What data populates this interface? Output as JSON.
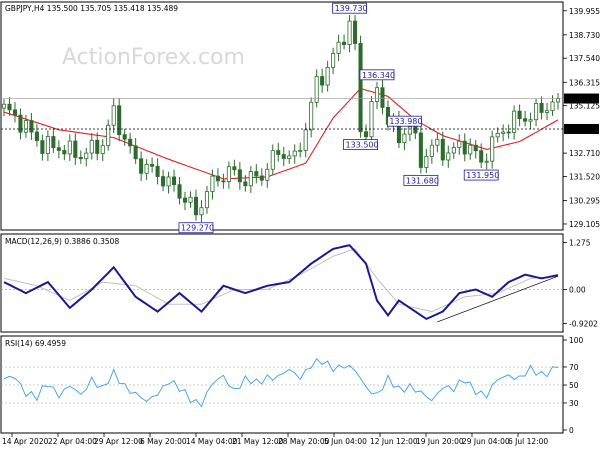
{
  "header": {
    "main_title": "GBPJPY,H4  135.500 135.705 135.418 135.489",
    "macd_title": "MACD(12,26,9) 0.3886 0.3508",
    "rsi_title": "RSI(14) 69.4959",
    "watermark": "ActionForex.com"
  },
  "colors": {
    "candle": "#2f6b2f",
    "ma": "#e02020",
    "macd": "#1a1a8c",
    "signal": "#c0c0c0",
    "rsi": "#3aa0e8",
    "annotation": "#1f1f9a",
    "grid": "#c8c8c8"
  },
  "chart_data": [
    {
      "type": "candlestick",
      "panel": "price",
      "title": "GBPJPY,H4  135.500 135.705 135.418 135.489",
      "x_ticks": [
        "14 Apr 2020",
        "22 Apr 04:00",
        "29 Apr 12:00",
        "6 May 20:00",
        "14 May 04:00",
        "21 May 12:00",
        "28 May 20:00",
        "5 Jun 04:00",
        "12 Jun 12:00",
        "19 Jun 20:00",
        "29 Jun 04:00",
        "6 Jul 12:00"
      ],
      "y_ticks": [
        139.955,
        138.73,
        137.54,
        136.315,
        135.125,
        132.71,
        131.52,
        130.295,
        129.105
      ],
      "ylim": [
        128.9,
        140.3
      ],
      "key_levels": [
        {
          "label": "139.730",
          "index": 63,
          "value": 139.73
        },
        {
          "label": "136.340",
          "index": 68,
          "value": 136.34
        },
        {
          "label": "133.500",
          "index": 65,
          "value": 133.5
        },
        {
          "label": "133.980",
          "index": 73,
          "value": 133.98
        },
        {
          "label": "131.680",
          "index": 76,
          "value": 131.68
        },
        {
          "label": "131.950",
          "index": 87,
          "value": 131.95
        },
        {
          "label": "129.270",
          "index": 35,
          "value": 129.27
        }
      ],
      "current_price": {
        "label": "135.489",
        "value": 135.489
      },
      "hline": {
        "label": "133.940",
        "value": 133.94
      },
      "close_path": [
        {
          "i": 0,
          "v": 135.0
        },
        {
          "i": 3,
          "v": 134.3
        },
        {
          "i": 7,
          "v": 133.1
        },
        {
          "i": 10,
          "v": 133.0
        },
        {
          "i": 14,
          "v": 132.6
        },
        {
          "i": 18,
          "v": 133.2
        },
        {
          "i": 20,
          "v": 134.8
        },
        {
          "i": 22,
          "v": 133.4
        },
        {
          "i": 24,
          "v": 132.3
        },
        {
          "i": 27,
          "v": 131.8
        },
        {
          "i": 30,
          "v": 131.2
        },
        {
          "i": 33,
          "v": 130.4
        },
        {
          "i": 35,
          "v": 129.8
        },
        {
          "i": 38,
          "v": 131.2
        },
        {
          "i": 41,
          "v": 131.8
        },
        {
          "i": 44,
          "v": 131.3
        },
        {
          "i": 47,
          "v": 131.6
        },
        {
          "i": 50,
          "v": 132.8
        },
        {
          "i": 53,
          "v": 132.4
        },
        {
          "i": 55,
          "v": 134.0
        },
        {
          "i": 57,
          "v": 136.3
        },
        {
          "i": 59,
          "v": 137.0
        },
        {
          "i": 61,
          "v": 138.2
        },
        {
          "i": 63,
          "v": 139.3
        },
        {
          "i": 65,
          "v": 137.0
        },
        {
          "i": 66,
          "v": 134.0
        },
        {
          "i": 68,
          "v": 135.8
        },
        {
          "i": 70,
          "v": 134.5
        },
        {
          "i": 72,
          "v": 133.4
        },
        {
          "i": 74,
          "v": 134.2
        },
        {
          "i": 76,
          "v": 132.2
        },
        {
          "i": 78,
          "v": 133.1
        },
        {
          "i": 81,
          "v": 132.7
        },
        {
          "i": 84,
          "v": 133.2
        },
        {
          "i": 87,
          "v": 132.4
        },
        {
          "i": 90,
          "v": 133.6
        },
        {
          "i": 93,
          "v": 134.4
        },
        {
          "i": 96,
          "v": 134.6
        },
        {
          "i": 99,
          "v": 135.1
        },
        {
          "i": 101,
          "v": 135.5
        }
      ],
      "ma_path": [
        {
          "i": 0,
          "v": 134.8
        },
        {
          "i": 10,
          "v": 133.9
        },
        {
          "i": 20,
          "v": 133.5
        },
        {
          "i": 30,
          "v": 132.4
        },
        {
          "i": 40,
          "v": 131.4
        },
        {
          "i": 48,
          "v": 131.5
        },
        {
          "i": 55,
          "v": 132.2
        },
        {
          "i": 60,
          "v": 134.5
        },
        {
          "i": 65,
          "v": 136.0
        },
        {
          "i": 70,
          "v": 135.6
        },
        {
          "i": 75,
          "v": 134.4
        },
        {
          "i": 80,
          "v": 133.6
        },
        {
          "i": 88,
          "v": 132.9
        },
        {
          "i": 94,
          "v": 133.3
        },
        {
          "i": 101,
          "v": 134.4
        }
      ]
    },
    {
      "type": "line",
      "panel": "macd",
      "title": "MACD(12,26,9) 0.3886 0.3508",
      "y_ticks": [
        1.275,
        0.0,
        -0.9202
      ],
      "ylim": [
        -1.1,
        1.45
      ],
      "trendline": [
        {
          "i": 79,
          "v": -0.88
        },
        {
          "i": 101,
          "v": 0.36
        }
      ],
      "macd_path": [
        {
          "i": 0,
          "v": 0.2
        },
        {
          "i": 4,
          "v": -0.1
        },
        {
          "i": 8,
          "v": 0.2
        },
        {
          "i": 12,
          "v": -0.5
        },
        {
          "i": 16,
          "v": 0.0
        },
        {
          "i": 20,
          "v": 0.6
        },
        {
          "i": 24,
          "v": -0.2
        },
        {
          "i": 28,
          "v": -0.6
        },
        {
          "i": 32,
          "v": -0.1
        },
        {
          "i": 36,
          "v": -0.6
        },
        {
          "i": 40,
          "v": 0.1
        },
        {
          "i": 44,
          "v": -0.1
        },
        {
          "i": 48,
          "v": 0.1
        },
        {
          "i": 52,
          "v": 0.2
        },
        {
          "i": 56,
          "v": 0.7
        },
        {
          "i": 60,
          "v": 1.1
        },
        {
          "i": 63,
          "v": 1.2
        },
        {
          "i": 66,
          "v": 0.7
        },
        {
          "i": 68,
          "v": -0.3
        },
        {
          "i": 70,
          "v": -0.7
        },
        {
          "i": 72,
          "v": -0.3
        },
        {
          "i": 74,
          "v": -0.5
        },
        {
          "i": 77,
          "v": -0.8
        },
        {
          "i": 80,
          "v": -0.6
        },
        {
          "i": 83,
          "v": -0.1
        },
        {
          "i": 86,
          "v": 0.0
        },
        {
          "i": 89,
          "v": -0.2
        },
        {
          "i": 92,
          "v": 0.2
        },
        {
          "i": 95,
          "v": 0.4
        },
        {
          "i": 98,
          "v": 0.3
        },
        {
          "i": 101,
          "v": 0.39
        }
      ],
      "signal_path": [
        {
          "i": 0,
          "v": 0.3
        },
        {
          "i": 6,
          "v": 0.1
        },
        {
          "i": 12,
          "v": -0.3
        },
        {
          "i": 18,
          "v": 0.2
        },
        {
          "i": 24,
          "v": 0.1
        },
        {
          "i": 30,
          "v": -0.4
        },
        {
          "i": 36,
          "v": -0.4
        },
        {
          "i": 42,
          "v": 0.0
        },
        {
          "i": 48,
          "v": 0.0
        },
        {
          "i": 54,
          "v": 0.4
        },
        {
          "i": 60,
          "v": 0.9
        },
        {
          "i": 64,
          "v": 1.1
        },
        {
          "i": 68,
          "v": 0.3
        },
        {
          "i": 72,
          "v": -0.4
        },
        {
          "i": 78,
          "v": -0.6
        },
        {
          "i": 84,
          "v": -0.2
        },
        {
          "i": 90,
          "v": -0.1
        },
        {
          "i": 96,
          "v": 0.3
        },
        {
          "i": 101,
          "v": 0.35
        }
      ]
    },
    {
      "type": "line",
      "panel": "rsi",
      "title": "RSI(14) 69.4959",
      "y_ticks": [
        100,
        70,
        50,
        30,
        0
      ],
      "ylim": [
        0,
        100
      ],
      "rsi_path": [
        {
          "i": 0,
          "v": 55
        },
        {
          "i": 2,
          "v": 60
        },
        {
          "i": 4,
          "v": 42
        },
        {
          "i": 6,
          "v": 35
        },
        {
          "i": 8,
          "v": 52
        },
        {
          "i": 10,
          "v": 40
        },
        {
          "i": 12,
          "v": 48
        },
        {
          "i": 14,
          "v": 38
        },
        {
          "i": 16,
          "v": 58
        },
        {
          "i": 18,
          "v": 45
        },
        {
          "i": 20,
          "v": 62
        },
        {
          "i": 22,
          "v": 50
        },
        {
          "i": 24,
          "v": 40
        },
        {
          "i": 26,
          "v": 30
        },
        {
          "i": 28,
          "v": 42
        },
        {
          "i": 30,
          "v": 55
        },
        {
          "i": 32,
          "v": 45
        },
        {
          "i": 34,
          "v": 35
        },
        {
          "i": 36,
          "v": 30
        },
        {
          "i": 38,
          "v": 50
        },
        {
          "i": 40,
          "v": 60
        },
        {
          "i": 42,
          "v": 45
        },
        {
          "i": 44,
          "v": 55
        },
        {
          "i": 46,
          "v": 52
        },
        {
          "i": 48,
          "v": 60
        },
        {
          "i": 50,
          "v": 58
        },
        {
          "i": 52,
          "v": 66
        },
        {
          "i": 54,
          "v": 60
        },
        {
          "i": 56,
          "v": 72
        },
        {
          "i": 58,
          "v": 75
        },
        {
          "i": 60,
          "v": 70
        },
        {
          "i": 62,
          "v": 72
        },
        {
          "i": 64,
          "v": 65
        },
        {
          "i": 66,
          "v": 48
        },
        {
          "i": 68,
          "v": 40
        },
        {
          "i": 70,
          "v": 55
        },
        {
          "i": 72,
          "v": 45
        },
        {
          "i": 74,
          "v": 50
        },
        {
          "i": 76,
          "v": 40
        },
        {
          "i": 78,
          "v": 32
        },
        {
          "i": 80,
          "v": 50
        },
        {
          "i": 82,
          "v": 45
        },
        {
          "i": 84,
          "v": 55
        },
        {
          "i": 86,
          "v": 45
        },
        {
          "i": 88,
          "v": 38
        },
        {
          "i": 90,
          "v": 55
        },
        {
          "i": 92,
          "v": 62
        },
        {
          "i": 94,
          "v": 58
        },
        {
          "i": 96,
          "v": 66
        },
        {
          "i": 98,
          "v": 62
        },
        {
          "i": 100,
          "v": 68
        },
        {
          "i": 101,
          "v": 69.5
        }
      ]
    }
  ]
}
